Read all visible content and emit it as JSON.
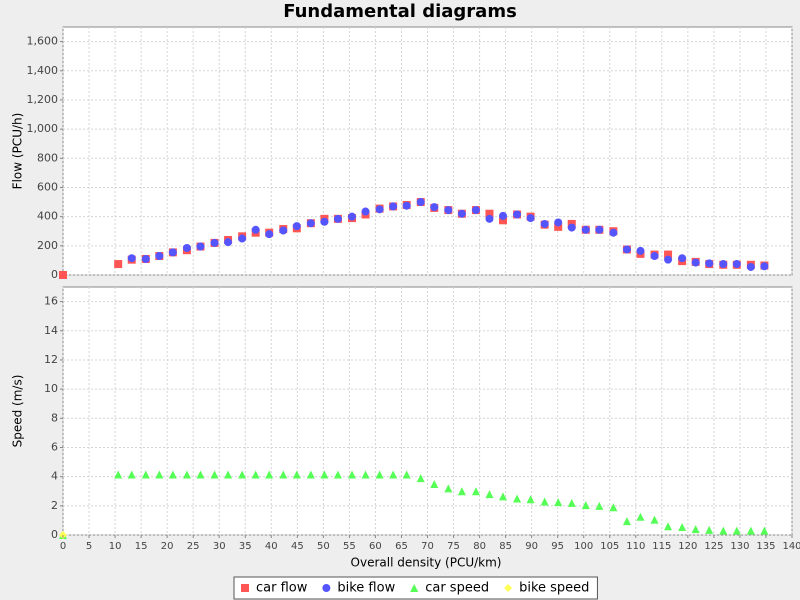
{
  "chart_data": {
    "type": "scatter",
    "title": "Fundamental diagrams",
    "xlabel": "Overall density (PCU/km)",
    "xlim": [
      0,
      140
    ],
    "xticks": [
      0,
      5,
      10,
      15,
      20,
      25,
      30,
      35,
      40,
      45,
      50,
      55,
      60,
      65,
      70,
      75,
      80,
      85,
      90,
      95,
      100,
      105,
      110,
      115,
      120,
      125,
      130,
      135,
      140
    ],
    "grid": true,
    "x": [
      0,
      10.6,
      13.2,
      15.9,
      18.5,
      21.1,
      23.8,
      26.4,
      29.1,
      31.7,
      34.4,
      37.0,
      39.6,
      42.3,
      44.9,
      47.6,
      50.2,
      52.8,
      55.5,
      58.1,
      60.8,
      63.4,
      66.0,
      68.7,
      71.3,
      74.0,
      76.6,
      79.3,
      81.9,
      84.5,
      87.2,
      89.8,
      92.5,
      95.1,
      97.7,
      100.4,
      103.0,
      105.7,
      108.3,
      110.9,
      113.6,
      116.2,
      118.9,
      121.5,
      124.1,
      126.8,
      129.4,
      132.1,
      134.7
    ],
    "panels": [
      {
        "ylabel": "Flow (PCU/h)",
        "ylim": [
          0,
          1700
        ],
        "yticks": [
          0,
          200,
          400,
          600,
          800,
          {
            "value": 1000,
            "label": "1,000"
          },
          {
            "value": 1200,
            "label": "1,200"
          },
          {
            "value": 1400,
            "label": "1,400"
          },
          {
            "value": 1600,
            "label": "1,600"
          }
        ],
        "series": [
          {
            "name": "car flow",
            "color": "#ff5555",
            "marker": "square",
            "values": [
              0,
              75,
              105,
              110,
              130,
              155,
              170,
              195,
              220,
              240,
              265,
              290,
              290,
              315,
              320,
              355,
              385,
              385,
              390,
              415,
              455,
              470,
              480,
              500,
              460,
              445,
              420,
              445,
              420,
              375,
              415,
              400,
              345,
              330,
              350,
              310,
              310,
              300,
              175,
              145,
              140,
              140,
              95,
              90,
              75,
              70,
              70,
              70,
              65
            ]
          },
          {
            "name": "bike flow",
            "color": "#5555ff",
            "marker": "circle",
            "values": [
              null,
              null,
              115,
              110,
              130,
              155,
              185,
              195,
              220,
              225,
              250,
              310,
              280,
              305,
              335,
              355,
              365,
              385,
              400,
              435,
              450,
              470,
              475,
              500,
              465,
              445,
              420,
              445,
              385,
              405,
              415,
              390,
              350,
              360,
              325,
              310,
              310,
              290,
              175,
              165,
              130,
              105,
              115,
              85,
              80,
              75,
              75,
              55,
              60
            ]
          }
        ]
      },
      {
        "ylabel": "Speed (m/s)",
        "ylim": [
          0,
          17
        ],
        "yticks": [
          0,
          2,
          4,
          6,
          8,
          10,
          12,
          14,
          16
        ],
        "series": [
          {
            "name": "car speed",
            "color": "#55ff55",
            "marker": "triangle",
            "values": [
              0,
              4.15,
              4.15,
              4.15,
              4.15,
              4.15,
              4.15,
              4.15,
              4.15,
              4.15,
              4.15,
              4.15,
              4.15,
              4.15,
              4.15,
              4.15,
              4.15,
              4.15,
              4.15,
              4.15,
              4.15,
              4.15,
              4.15,
              3.9,
              3.5,
              3.2,
              3.0,
              3.0,
              2.8,
              2.65,
              2.5,
              2.45,
              2.3,
              2.25,
              2.2,
              2.05,
              2.0,
              1.9,
              0.95,
              1.25,
              1.05,
              0.6,
              0.55,
              0.4,
              0.35,
              0.3,
              0.3,
              0.3,
              0.3
            ]
          },
          {
            "name": "bike speed",
            "color": "#ffff55",
            "marker": "diamond",
            "values": [
              0,
              null,
              null,
              null,
              null,
              null,
              null,
              null,
              null,
              null,
              null,
              null,
              null,
              null,
              null,
              null,
              null,
              null,
              null,
              null,
              null,
              null,
              null,
              null,
              null,
              null,
              null,
              null,
              null,
              null,
              null,
              null,
              null,
              null,
              null,
              null,
              null,
              null,
              null,
              null,
              null,
              null,
              null,
              null,
              null,
              null,
              null,
              null,
              null
            ]
          }
        ]
      }
    ]
  }
}
